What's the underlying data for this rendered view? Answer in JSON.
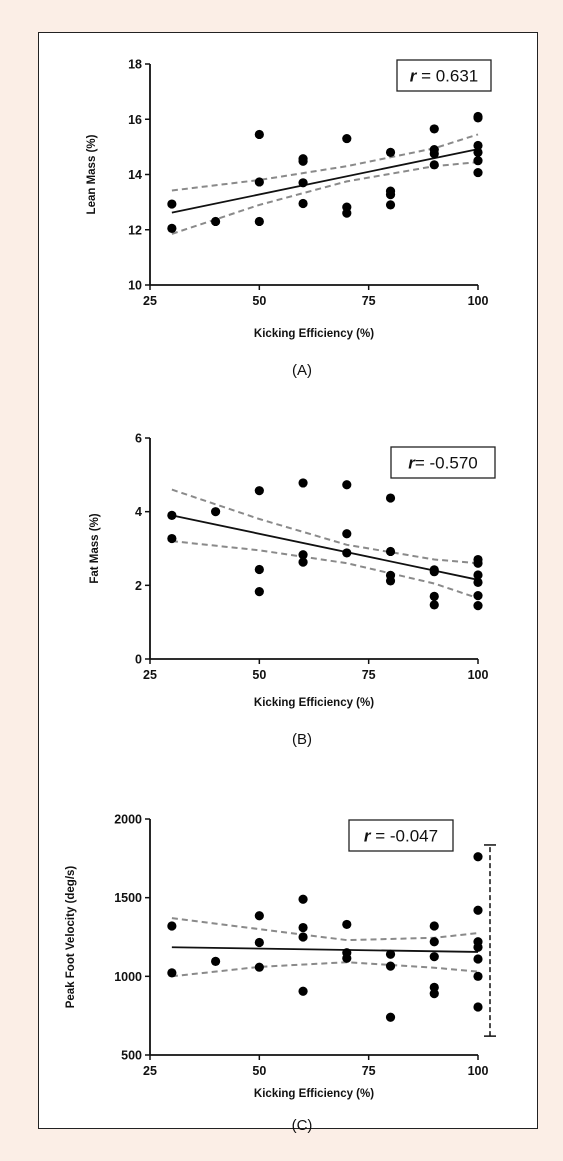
{
  "chart_data": [
    {
      "id": "A",
      "type": "scatter",
      "panel_label": "(A)",
      "title": "",
      "xlabel": "Kicking Efficiency (%)",
      "ylabel": "Lean Mass (%)",
      "xlim": [
        25,
        100
      ],
      "ylim": [
        10,
        18
      ],
      "xticks": [
        25,
        50,
        75,
        100
      ],
      "yticks": [
        10,
        12,
        14,
        16,
        18
      ],
      "annotation": {
        "r_symbol": "r",
        "r_value": " = 0.631"
      },
      "points": [
        [
          30,
          12.93
        ],
        [
          30,
          12.05
        ],
        [
          40,
          12.3
        ],
        [
          50,
          15.45
        ],
        [
          50,
          13.73
        ],
        [
          50,
          12.3
        ],
        [
          60,
          14.57
        ],
        [
          60,
          14.48
        ],
        [
          60,
          13.7
        ],
        [
          60,
          12.95
        ],
        [
          70,
          15.3
        ],
        [
          70,
          12.82
        ],
        [
          70,
          12.6
        ],
        [
          80,
          14.8
        ],
        [
          80,
          13.4
        ],
        [
          80,
          13.27
        ],
        [
          80,
          12.9
        ],
        [
          90,
          15.65
        ],
        [
          90,
          14.9
        ],
        [
          90,
          14.75
        ],
        [
          90,
          14.35
        ],
        [
          100,
          16.1
        ],
        [
          100,
          16.05
        ],
        [
          100,
          15.05
        ],
        [
          100,
          14.8
        ],
        [
          100,
          14.5
        ],
        [
          100,
          14.07
        ]
      ],
      "fit_line": [
        [
          30,
          12.62
        ],
        [
          100,
          14.92
        ]
      ],
      "ci_upper": [
        [
          30,
          13.42
        ],
        [
          50,
          13.8
        ],
        [
          70,
          14.3
        ],
        [
          90,
          14.95
        ],
        [
          100,
          15.45
        ]
      ],
      "ci_lower": [
        [
          30,
          11.85
        ],
        [
          50,
          12.9
        ],
        [
          70,
          13.75
        ],
        [
          90,
          14.3
        ],
        [
          100,
          14.45
        ]
      ]
    },
    {
      "id": "B",
      "type": "scatter",
      "panel_label": "(B)",
      "title": "",
      "xlabel": "Kicking Efficiency (%)",
      "ylabel": "Fat Mass (%)",
      "xlim": [
        25,
        100
      ],
      "ylim": [
        0,
        6
      ],
      "xticks": [
        25,
        50,
        75,
        100
      ],
      "yticks": [
        0,
        2,
        4,
        6
      ],
      "annotation": {
        "r_symbol": "r",
        "r_value": "= -0.570"
      },
      "points": [
        [
          30,
          3.9
        ],
        [
          30,
          3.27
        ],
        [
          40,
          4.0
        ],
        [
          50,
          4.57
        ],
        [
          50,
          2.43
        ],
        [
          50,
          1.83
        ],
        [
          60,
          4.78
        ],
        [
          60,
          2.83
        ],
        [
          60,
          2.63
        ],
        [
          70,
          4.73
        ],
        [
          70,
          3.4
        ],
        [
          70,
          2.88
        ],
        [
          80,
          4.37
        ],
        [
          80,
          2.92
        ],
        [
          80,
          2.27
        ],
        [
          80,
          2.12
        ],
        [
          90,
          2.42
        ],
        [
          90,
          2.37
        ],
        [
          90,
          1.7
        ],
        [
          90,
          1.47
        ],
        [
          100,
          2.7
        ],
        [
          100,
          2.6
        ],
        [
          100,
          2.28
        ],
        [
          100,
          2.08
        ],
        [
          100,
          1.72
        ],
        [
          100,
          1.45
        ]
      ],
      "fit_line": [
        [
          30,
          3.9
        ],
        [
          100,
          2.15
        ]
      ],
      "ci_upper": [
        [
          30,
          4.6
        ],
        [
          50,
          3.8
        ],
        [
          70,
          3.1
        ],
        [
          90,
          2.7
        ],
        [
          100,
          2.6
        ]
      ],
      "ci_lower": [
        [
          30,
          3.2
        ],
        [
          50,
          2.95
        ],
        [
          70,
          2.6
        ],
        [
          90,
          2.05
        ],
        [
          100,
          1.65
        ]
      ]
    },
    {
      "id": "C",
      "type": "scatter",
      "panel_label": "(C)",
      "title": "",
      "xlabel": "Kicking Efficiency (%)",
      "ylabel": "Peak Foot Velocity (deg/s)",
      "xlim": [
        25,
        100
      ],
      "ylim": [
        500,
        2000
      ],
      "xticks": [
        25,
        50,
        75,
        100
      ],
      "yticks": [
        500,
        1000,
        1500,
        2000
      ],
      "annotation": {
        "r_symbol": "r",
        "r_value": " = -0.047"
      },
      "points": [
        [
          30,
          1320
        ],
        [
          30,
          1022
        ],
        [
          40,
          1095
        ],
        [
          50,
          1385
        ],
        [
          50,
          1215
        ],
        [
          50,
          1058
        ],
        [
          60,
          1490
        ],
        [
          60,
          1310
        ],
        [
          60,
          1250
        ],
        [
          60,
          905
        ],
        [
          70,
          1330
        ],
        [
          70,
          1150
        ],
        [
          70,
          1115
        ],
        [
          80,
          1140
        ],
        [
          80,
          1065
        ],
        [
          80,
          740
        ],
        [
          90,
          1320
        ],
        [
          90,
          1220
        ],
        [
          90,
          1125
        ],
        [
          90,
          930
        ],
        [
          90,
          890
        ],
        [
          100,
          1760
        ],
        [
          100,
          1420
        ],
        [
          100,
          1220
        ],
        [
          100,
          1185
        ],
        [
          100,
          1110
        ],
        [
          100,
          1000
        ],
        [
          100,
          805
        ]
      ],
      "fit_line": [
        [
          30,
          1185
        ],
        [
          100,
          1155
        ]
      ],
      "ci_upper": [
        [
          30,
          1370
        ],
        [
          50,
          1300
        ],
        [
          70,
          1230
        ],
        [
          90,
          1245
        ],
        [
          100,
          1275
        ]
      ],
      "ci_lower": [
        [
          30,
          1000
        ],
        [
          50,
          1060
        ],
        [
          70,
          1090
        ],
        [
          90,
          1055
        ],
        [
          100,
          1030
        ]
      ],
      "range_bar": [
        620,
        1835
      ]
    }
  ]
}
